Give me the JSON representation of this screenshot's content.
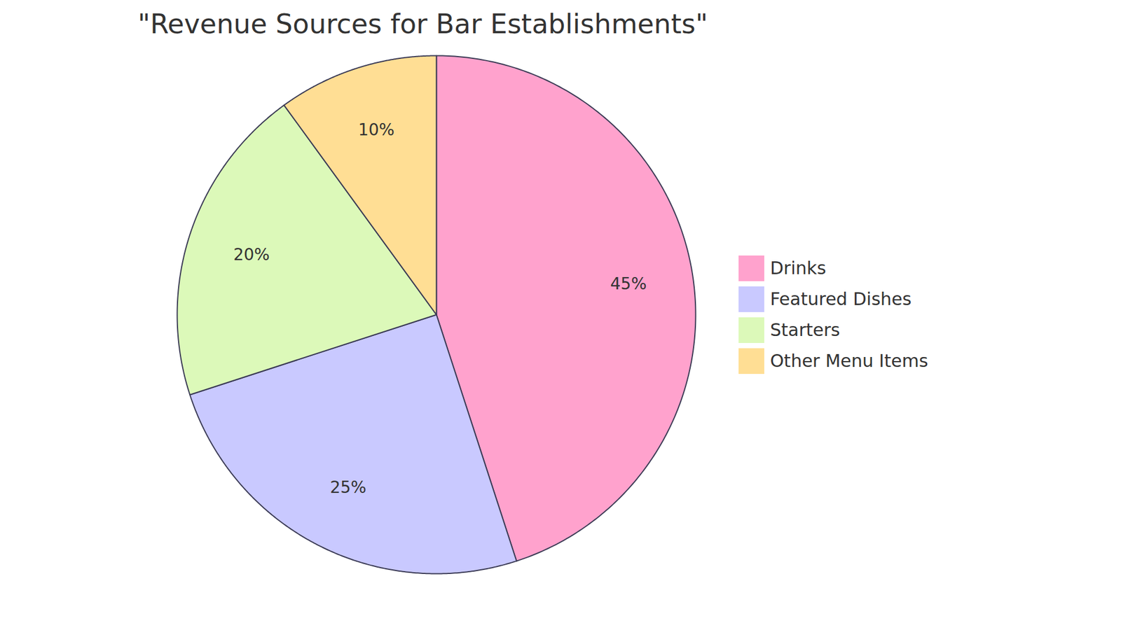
{
  "chart_data": {
    "type": "pie",
    "title": "\"Revenue Sources for Bar Establishments\"",
    "categories": [
      "Drinks",
      "Featured Dishes",
      "Starters",
      "Other Menu Items"
    ],
    "values": [
      45,
      25,
      20,
      10
    ],
    "value_labels": [
      "45%",
      "25%",
      "20%",
      "10%"
    ],
    "colors": [
      "#ffa2cd",
      "#c9c9ff",
      "#dcf9b9",
      "#ffde94"
    ],
    "data_labels": true,
    "legend": "right"
  }
}
